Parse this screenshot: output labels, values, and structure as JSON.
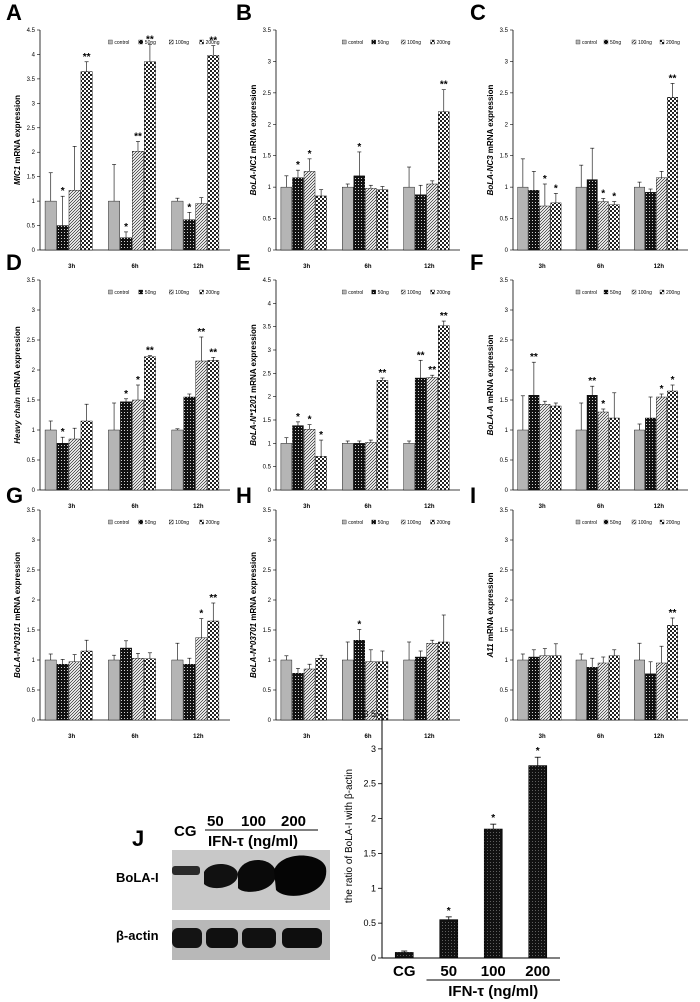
{
  "legend": [
    "control",
    "50ng",
    "100ng",
    "200ng"
  ],
  "chart_data": [
    {
      "panel": "A",
      "type": "bar",
      "title": "",
      "ylabel_italic": "MIC1",
      "ylabel_rest": " mRNA expression",
      "ylim": [
        0,
        4.5
      ],
      "yticks": [
        "0",
        "0.5",
        "1",
        "1.5",
        "2",
        "2.5",
        "3",
        "3.5",
        "4",
        "4.5"
      ],
      "categories": [
        "3h",
        "6h",
        "12h"
      ],
      "series": [
        {
          "name": "control",
          "values": [
            1.0,
            1.0,
            1.0
          ],
          "errors": [
            0.58,
            0.75,
            0.06
          ]
        },
        {
          "name": "50ng",
          "values": [
            0.5,
            0.25,
            0.62
          ],
          "errors": [
            0.6,
            0.12,
            0.15
          ]
        },
        {
          "name": "100ng",
          "values": [
            1.22,
            2.02,
            0.95
          ],
          "errors": [
            0.9,
            0.2,
            0.12
          ]
        },
        {
          "name": "200ng",
          "values": [
            3.65,
            3.85,
            3.98
          ],
          "errors": [
            0.2,
            0.35,
            0.2
          ]
        }
      ],
      "stars": [
        [
          "",
          "*",
          "",
          "**"
        ],
        [
          "",
          "*",
          "**",
          "**"
        ],
        [
          "",
          "*",
          "",
          "**"
        ]
      ]
    },
    {
      "panel": "B",
      "type": "bar",
      "title": "",
      "ylabel_italic": "BoLA-NC1",
      "ylabel_rest": " mRNA expression",
      "ylim": [
        0,
        3.5
      ],
      "yticks": [
        "0",
        "0.5",
        "1",
        "1.5",
        "2",
        "2.5",
        "3",
        "3.5"
      ],
      "categories": [
        "3h",
        "6h",
        "12h"
      ],
      "series": [
        {
          "name": "control",
          "values": [
            1.0,
            1.0,
            1.0
          ],
          "errors": [
            0.18,
            0.05,
            0.32
          ]
        },
        {
          "name": "50ng",
          "values": [
            1.15,
            1.18,
            0.88
          ],
          "errors": [
            0.12,
            0.38,
            0.15
          ]
        },
        {
          "name": "100ng",
          "values": [
            1.25,
            0.98,
            1.05
          ],
          "errors": [
            0.2,
            0.05,
            0.05
          ]
        },
        {
          "name": "200ng",
          "values": [
            0.86,
            0.96,
            2.2
          ],
          "errors": [
            0.1,
            0.05,
            0.35
          ]
        }
      ],
      "stars": [
        [
          "",
          "*",
          "*",
          ""
        ],
        [
          "",
          "*",
          "",
          ""
        ],
        [
          "",
          "",
          "",
          "**"
        ]
      ]
    },
    {
      "panel": "C",
      "type": "bar",
      "title": "",
      "ylabel_italic": "BoLA-NC3",
      "ylabel_rest": " mRNA expression",
      "ylim": [
        0,
        3.5
      ],
      "yticks": [
        "0",
        "0.5",
        "1",
        "1.5",
        "2",
        "2.5",
        "3",
        "3.5"
      ],
      "categories": [
        "3h",
        "6h",
        "12h"
      ],
      "series": [
        {
          "name": "control",
          "values": [
            1.0,
            1.0,
            1.0
          ],
          "errors": [
            0.45,
            0.35,
            0.08
          ]
        },
        {
          "name": "50ng",
          "values": [
            0.95,
            1.12,
            0.92
          ],
          "errors": [
            0.3,
            0.5,
            0.05
          ]
        },
        {
          "name": "100ng",
          "values": [
            0.7,
            0.77,
            1.15
          ],
          "errors": [
            0.35,
            0.05,
            0.1
          ]
        },
        {
          "name": "200ng",
          "values": [
            0.75,
            0.72,
            2.43
          ],
          "errors": [
            0.15,
            0.05,
            0.22
          ]
        }
      ],
      "stars": [
        [
          "",
          "",
          "*",
          "*"
        ],
        [
          "",
          "",
          "*",
          "*"
        ],
        [
          "",
          "",
          "",
          "**"
        ]
      ]
    },
    {
      "panel": "D",
      "type": "bar",
      "title": "",
      "ylabel_italic": "Heavy chain",
      "ylabel_rest": " mRNA expression",
      "ylim": [
        0,
        3.5
      ],
      "yticks": [
        "0",
        "0.5",
        "1",
        "1.5",
        "2",
        "2.5",
        "3",
        "3.5"
      ],
      "categories": [
        "3h",
        "6h",
        "12h"
      ],
      "series": [
        {
          "name": "control",
          "values": [
            1.0,
            1.0,
            1.0
          ],
          "errors": [
            0.15,
            0.45,
            0.02
          ]
        },
        {
          "name": "50ng",
          "values": [
            0.78,
            1.47,
            1.55
          ],
          "errors": [
            0.1,
            0.05,
            0.05
          ]
        },
        {
          "name": "100ng",
          "values": [
            0.85,
            1.5,
            2.15
          ],
          "errors": [
            0.18,
            0.25,
            0.4
          ]
        },
        {
          "name": "200ng",
          "values": [
            1.15,
            2.22,
            2.16
          ],
          "errors": [
            0.28,
            0.02,
            0.05
          ]
        }
      ],
      "stars": [
        [
          "",
          "*",
          "",
          ""
        ],
        [
          "",
          "*",
          "*",
          "**"
        ],
        [
          "",
          "",
          "**",
          "**"
        ]
      ]
    },
    {
      "panel": "E",
      "type": "bar",
      "title": "",
      "ylabel_italic": "BoLA-N*1201",
      "ylabel_rest": " mRNA expression",
      "ylim": [
        0,
        4.5
      ],
      "yticks": [
        "0",
        "0.5",
        "1",
        "1.5",
        "2",
        "2.5",
        "3",
        "3.5",
        "4",
        "4.5"
      ],
      "categories": [
        "3h",
        "6h",
        "12h"
      ],
      "series": [
        {
          "name": "control",
          "values": [
            1.0,
            1.0,
            1.0
          ],
          "errors": [
            0.12,
            0.05,
            0.05
          ]
        },
        {
          "name": "50ng",
          "values": [
            1.38,
            1.0,
            2.4
          ],
          "errors": [
            0.08,
            0.05,
            0.38
          ]
        },
        {
          "name": "100ng",
          "values": [
            1.3,
            1.02,
            2.41
          ],
          "errors": [
            0.1,
            0.05,
            0.05
          ]
        },
        {
          "name": "200ng",
          "values": [
            0.72,
            2.35,
            3.52
          ],
          "errors": [
            0.35,
            0.05,
            0.1
          ]
        }
      ],
      "stars": [
        [
          "",
          "*",
          "*",
          "*"
        ],
        [
          "",
          "",
          "",
          "**"
        ],
        [
          "",
          "**",
          "**",
          "**"
        ]
      ]
    },
    {
      "panel": "F",
      "type": "bar",
      "title": "",
      "ylabel_italic": "BoLA-A",
      "ylabel_rest": " mRNA expression",
      "ylim": [
        0,
        3.5
      ],
      "yticks": [
        "0",
        "0.5",
        "1",
        "1.5",
        "2",
        "2.5",
        "3",
        "3.5"
      ],
      "categories": [
        "3h",
        "6h",
        "12h"
      ],
      "series": [
        {
          "name": "control",
          "values": [
            1.0,
            1.0,
            1.0
          ],
          "errors": [
            0.57,
            0.45,
            0.1
          ]
        },
        {
          "name": "50ng",
          "values": [
            1.58,
            1.58,
            1.2
          ],
          "errors": [
            0.55,
            0.15,
            0.35
          ]
        },
        {
          "name": "100ng",
          "values": [
            1.43,
            1.3,
            1.55
          ],
          "errors": [
            0.05,
            0.05,
            0.05
          ]
        },
        {
          "name": "200ng",
          "values": [
            1.4,
            1.2,
            1.65
          ],
          "errors": [
            0.05,
            0.42,
            0.1
          ]
        }
      ],
      "stars": [
        [
          "",
          "**",
          "",
          ""
        ],
        [
          "",
          "**",
          "*",
          ""
        ],
        [
          "",
          "",
          "*",
          "*"
        ]
      ]
    },
    {
      "panel": "G",
      "type": "bar",
      "title": "",
      "ylabel_italic": "BoLA-N*03101",
      "ylabel_rest": " mRNA expression",
      "ylim": [
        0,
        3.5
      ],
      "yticks": [
        "0",
        "0.5",
        "1",
        "1.5",
        "2",
        "2.5",
        "3",
        "3.5"
      ],
      "categories": [
        "3h",
        "6h",
        "12h"
      ],
      "series": [
        {
          "name": "control",
          "values": [
            1.0,
            1.0,
            1.0
          ],
          "errors": [
            0.1,
            0.08,
            0.28
          ]
        },
        {
          "name": "50ng",
          "values": [
            0.93,
            1.2,
            0.93
          ],
          "errors": [
            0.08,
            0.12,
            0.1
          ]
        },
        {
          "name": "100ng",
          "values": [
            0.97,
            1.03,
            1.37
          ],
          "errors": [
            0.12,
            0.08,
            0.32
          ]
        },
        {
          "name": "200ng",
          "values": [
            1.15,
            1.02,
            1.65
          ],
          "errors": [
            0.18,
            0.1,
            0.3
          ]
        }
      ],
      "stars": [
        [
          "",
          "",
          "",
          ""
        ],
        [
          "",
          "",
          "",
          ""
        ],
        [
          "",
          "",
          "*",
          "**"
        ]
      ]
    },
    {
      "panel": "H",
      "type": "bar",
      "title": "",
      "ylabel_italic": "BoLA-N*03701",
      "ylabel_rest": " mRNA expression",
      "ylim": [
        0,
        3.5
      ],
      "yticks": [
        "0",
        "0.5",
        "1",
        "1.5",
        "2",
        "2.5",
        "3",
        "3.5"
      ],
      "categories": [
        "3h",
        "6h",
        "12h"
      ],
      "series": [
        {
          "name": "control",
          "values": [
            1.0,
            1.0,
            1.0
          ],
          "errors": [
            0.07,
            0.3,
            0.3
          ]
        },
        {
          "name": "50ng",
          "values": [
            0.78,
            1.33,
            1.05
          ],
          "errors": [
            0.08,
            0.18,
            0.1
          ]
        },
        {
          "name": "100ng",
          "values": [
            0.85,
            0.97,
            1.28
          ],
          "errors": [
            0.08,
            0.2,
            0.05
          ]
        },
        {
          "name": "200ng",
          "values": [
            1.03,
            0.97,
            1.3
          ],
          "errors": [
            0.05,
            0.18,
            0.45
          ]
        }
      ],
      "stars": [
        [
          "",
          "",
          "",
          ""
        ],
        [
          "",
          "*",
          "",
          ""
        ],
        [
          "",
          "",
          "",
          ""
        ]
      ]
    },
    {
      "panel": "I",
      "type": "bar",
      "title": "",
      "ylabel_italic": "A11",
      "ylabel_rest": " mRNA expression",
      "ylim": [
        0,
        3.5
      ],
      "yticks": [
        "0",
        "0.5",
        "1",
        "1.5",
        "2",
        "2.5",
        "3",
        "3.5"
      ],
      "categories": [
        "3h",
        "6h",
        "12h"
      ],
      "series": [
        {
          "name": "control",
          "values": [
            1.0,
            1.0,
            1.0
          ],
          "errors": [
            0.1,
            0.1,
            0.28
          ]
        },
        {
          "name": "50ng",
          "values": [
            1.05,
            0.88,
            0.77
          ],
          "errors": [
            0.12,
            0.15,
            0.2
          ]
        },
        {
          "name": "100ng",
          "values": [
            1.07,
            0.95,
            0.95
          ],
          "errors": [
            0.12,
            0.1,
            0.28
          ]
        },
        {
          "name": "200ng",
          "values": [
            1.07,
            1.07,
            1.58
          ],
          "errors": [
            0.2,
            0.1,
            0.12
          ]
        }
      ],
      "stars": [
        [
          "",
          "",
          "",
          ""
        ],
        [
          "",
          "",
          "",
          ""
        ],
        [
          "",
          "",
          "",
          "**"
        ]
      ]
    },
    {
      "panel": "J",
      "type": "bar",
      "title": "",
      "ylabel": "the ratio of BoLA-I with β-actin",
      "xlabel": "IFN-τ (ng/ml)",
      "ylim": [
        0,
        3.5
      ],
      "yticks": [
        "0",
        "0.5",
        "1",
        "1.5",
        "2",
        "2.5",
        "3",
        "3.5"
      ],
      "categories": [
        "CG",
        "50",
        "100",
        "200"
      ],
      "values": [
        0.08,
        0.55,
        1.85,
        2.76
      ],
      "errors": [
        0.02,
        0.04,
        0.07,
        0.12
      ],
      "stars": [
        "",
        "*",
        "*",
        "*"
      ]
    }
  ],
  "blot": {
    "cg_label": "CG",
    "doses": [
      "50",
      "100",
      "200"
    ],
    "treatment_label": "IFN-τ (ng/ml)",
    "rows": [
      "BoLA-I",
      "β-actin"
    ]
  }
}
